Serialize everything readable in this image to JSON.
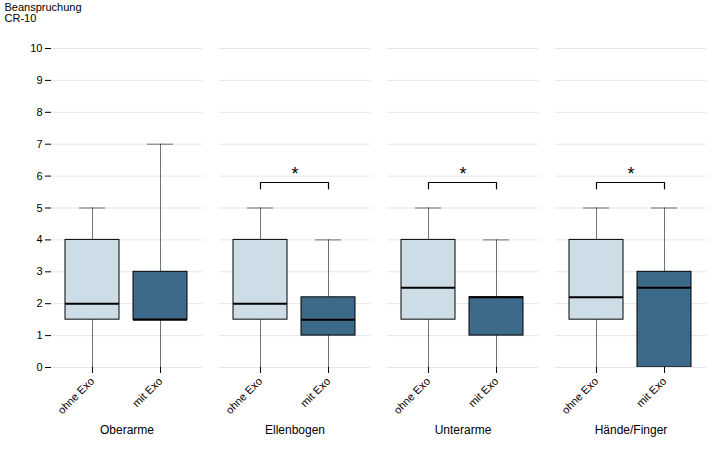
{
  "chart_data": {
    "type": "box",
    "ylabel": "Beanspruchung\nCR-10",
    "categories": [
      "Oberarme",
      "Ellenbogen",
      "Unterarme",
      "Hände/Finger"
    ],
    "series": [
      {
        "name": "ohne Exo",
        "color": "#cddde8",
        "values": [
          {
            "whislo": 0.0,
            "q1": 1.5,
            "med": 2.0,
            "q3": 4.0,
            "whishi": 5.0
          },
          {
            "whislo": 0.0,
            "q1": 1.5,
            "med": 2.0,
            "q3": 4.0,
            "whishi": 5.0
          },
          {
            "whislo": 0.0,
            "q1": 1.5,
            "med": 2.5,
            "q3": 4.0,
            "whishi": 5.0
          },
          {
            "whislo": 0.0,
            "q1": 1.5,
            "med": 2.2,
            "q3": 4.0,
            "whishi": 5.0
          }
        ]
      },
      {
        "name": "mit Exo",
        "color": "#3d6a8a",
        "values": [
          {
            "whislo": 0.0,
            "q1": 1.5,
            "med": 1.5,
            "q3": 3.0,
            "whishi": 7.0
          },
          {
            "whislo": 0.0,
            "q1": 1.0,
            "med": 1.5,
            "q3": 2.2,
            "whishi": 4.0
          },
          {
            "whislo": 0.0,
            "q1": 1.0,
            "med": 2.2,
            "q3": 2.2,
            "whishi": 4.0
          },
          {
            "whislo": 0.0,
            "q1": 0.0,
            "med": 2.5,
            "q3": 3.0,
            "whishi": 5.0
          }
        ]
      }
    ],
    "significance": [
      null,
      "*",
      "*",
      "*"
    ],
    "significance_y": 5.6,
    "significance_tick": 0.2,
    "ylim": [
      0,
      10
    ],
    "yticks": [
      0,
      1,
      2,
      3,
      4,
      5,
      6,
      7,
      8,
      9,
      10
    ],
    "grid": true
  }
}
